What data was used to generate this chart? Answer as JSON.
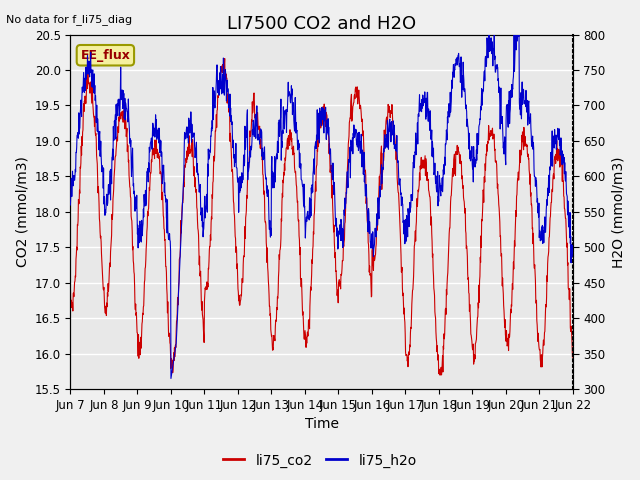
{
  "title": "LI7500 CO2 and H2O",
  "top_left_text": "No data for f_li75_diag",
  "box_label": "EE_flux",
  "xlabel": "Time",
  "ylabel_left": "CO2 (mmol/m3)",
  "ylabel_right": "H2O (mmol/m3)",
  "ylim_left": [
    15.5,
    20.5
  ],
  "ylim_right": [
    300,
    800
  ],
  "yticks_left": [
    15.5,
    16.0,
    16.5,
    17.0,
    17.5,
    18.0,
    18.5,
    19.0,
    19.5,
    20.0,
    20.5
  ],
  "yticks_right": [
    300,
    350,
    400,
    450,
    500,
    550,
    600,
    650,
    700,
    750,
    800
  ],
  "xtick_labels": [
    "Jun 7",
    "Jun 8",
    "Jun 9",
    "Jun 10",
    "Jun 11",
    "Jun 12",
    "Jun 13",
    "Jun 14",
    "Jun 15",
    "Jun 16",
    "Jun 17",
    "Jun 18",
    "Jun 19",
    "Jun 20",
    "Jun 21",
    "Jun 22"
  ],
  "legend_labels": [
    "li75_co2",
    "li75_h2o"
  ],
  "legend_colors": [
    "#cc0000",
    "#0000cc"
  ],
  "bg_color": "#e8e8e8",
  "grid_color": "#ffffff",
  "co2_color": "#cc0000",
  "h2o_color": "#0000cc",
  "title_fontsize": 13,
  "label_fontsize": 10,
  "tick_fontsize": 8.5,
  "figwidth": 6.4,
  "figheight": 4.8,
  "dpi": 100
}
